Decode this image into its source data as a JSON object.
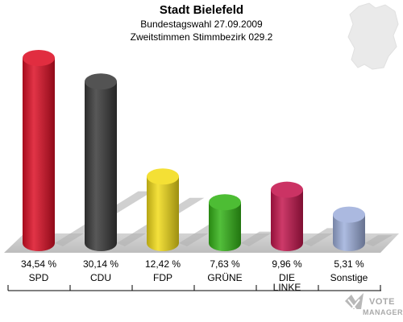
{
  "chart_data": {
    "type": "bar",
    "title": "Stadt Bielefeld",
    "subtitle": [
      "Bundestagswahl 27.09.2009",
      "Zweitstimmen Stimmbezirk 029.2"
    ],
    "categories": [
      "SPD",
      "CDU",
      "FDP",
      "GRÜNE",
      "DIE LINKE",
      "Sonstige"
    ],
    "category_lines": [
      [
        "SPD"
      ],
      [
        "CDU"
      ],
      [
        "FDP"
      ],
      [
        "GRÜNE"
      ],
      [
        "DIE",
        "LINKE"
      ],
      [
        "Sonstige"
      ]
    ],
    "values": [
      34.54,
      30.14,
      12.42,
      7.63,
      9.96,
      5.31
    ],
    "value_labels": [
      "34,54 %",
      "30,14 %",
      "12,42 %",
      "7,63 %",
      "9,96 %",
      "5,31 %"
    ],
    "colors": [
      "#dd1026",
      "#3b3b3b",
      "#f2dc1a",
      "#35b418",
      "#c4174f",
      "#9fb0dc"
    ],
    "unit": "%",
    "ylim": [
      0,
      36.5
    ],
    "grid": false,
    "legend": "none"
  },
  "logo": {
    "line1": "VOTE",
    "line2": "MANAGER",
    "icon": "checkmark-x-icon"
  },
  "background_map_icon": "germany-map-icon"
}
